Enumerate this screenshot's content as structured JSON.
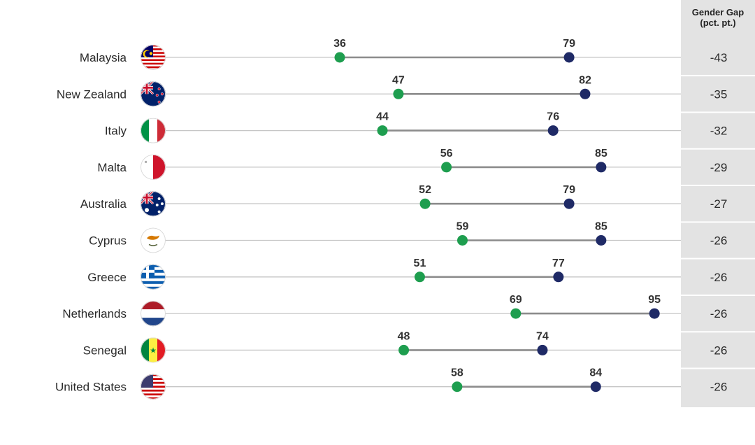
{
  "chart_data": {
    "type": "dumbbell",
    "gap_column_header": [
      "Gender Gap",
      "(pct. pt.)"
    ],
    "series_colors": {
      "start": "#1e9e4f",
      "end": "#1f2a66"
    },
    "xlim": [
      0,
      100
    ],
    "rows": [
      {
        "country": "Malaysia",
        "flag_icon": "malaysia-flag-icon",
        "start": 36,
        "end": 79,
        "gap": "-43"
      },
      {
        "country": "New Zealand",
        "flag_icon": "new-zealand-flag-icon",
        "start": 47,
        "end": 82,
        "gap": "-35"
      },
      {
        "country": "Italy",
        "flag_icon": "italy-flag-icon",
        "start": 44,
        "end": 76,
        "gap": "-32"
      },
      {
        "country": "Malta",
        "flag_icon": "malta-flag-icon",
        "start": 56,
        "end": 85,
        "gap": "-29"
      },
      {
        "country": "Australia",
        "flag_icon": "australia-flag-icon",
        "start": 52,
        "end": 79,
        "gap": "-27"
      },
      {
        "country": "Cyprus",
        "flag_icon": "cyprus-flag-icon",
        "start": 59,
        "end": 85,
        "gap": "-26"
      },
      {
        "country": "Greece",
        "flag_icon": "greece-flag-icon",
        "start": 51,
        "end": 77,
        "gap": "-26"
      },
      {
        "country": "Netherlands",
        "flag_icon": "netherlands-flag-icon",
        "start": 69,
        "end": 95,
        "gap": "-26"
      },
      {
        "country": "Senegal",
        "flag_icon": "senegal-flag-icon",
        "start": 48,
        "end": 74,
        "gap": "-26"
      },
      {
        "country": "United States",
        "flag_icon": "united-states-flag-icon",
        "start": 58,
        "end": 84,
        "gap": "-26"
      }
    ]
  }
}
